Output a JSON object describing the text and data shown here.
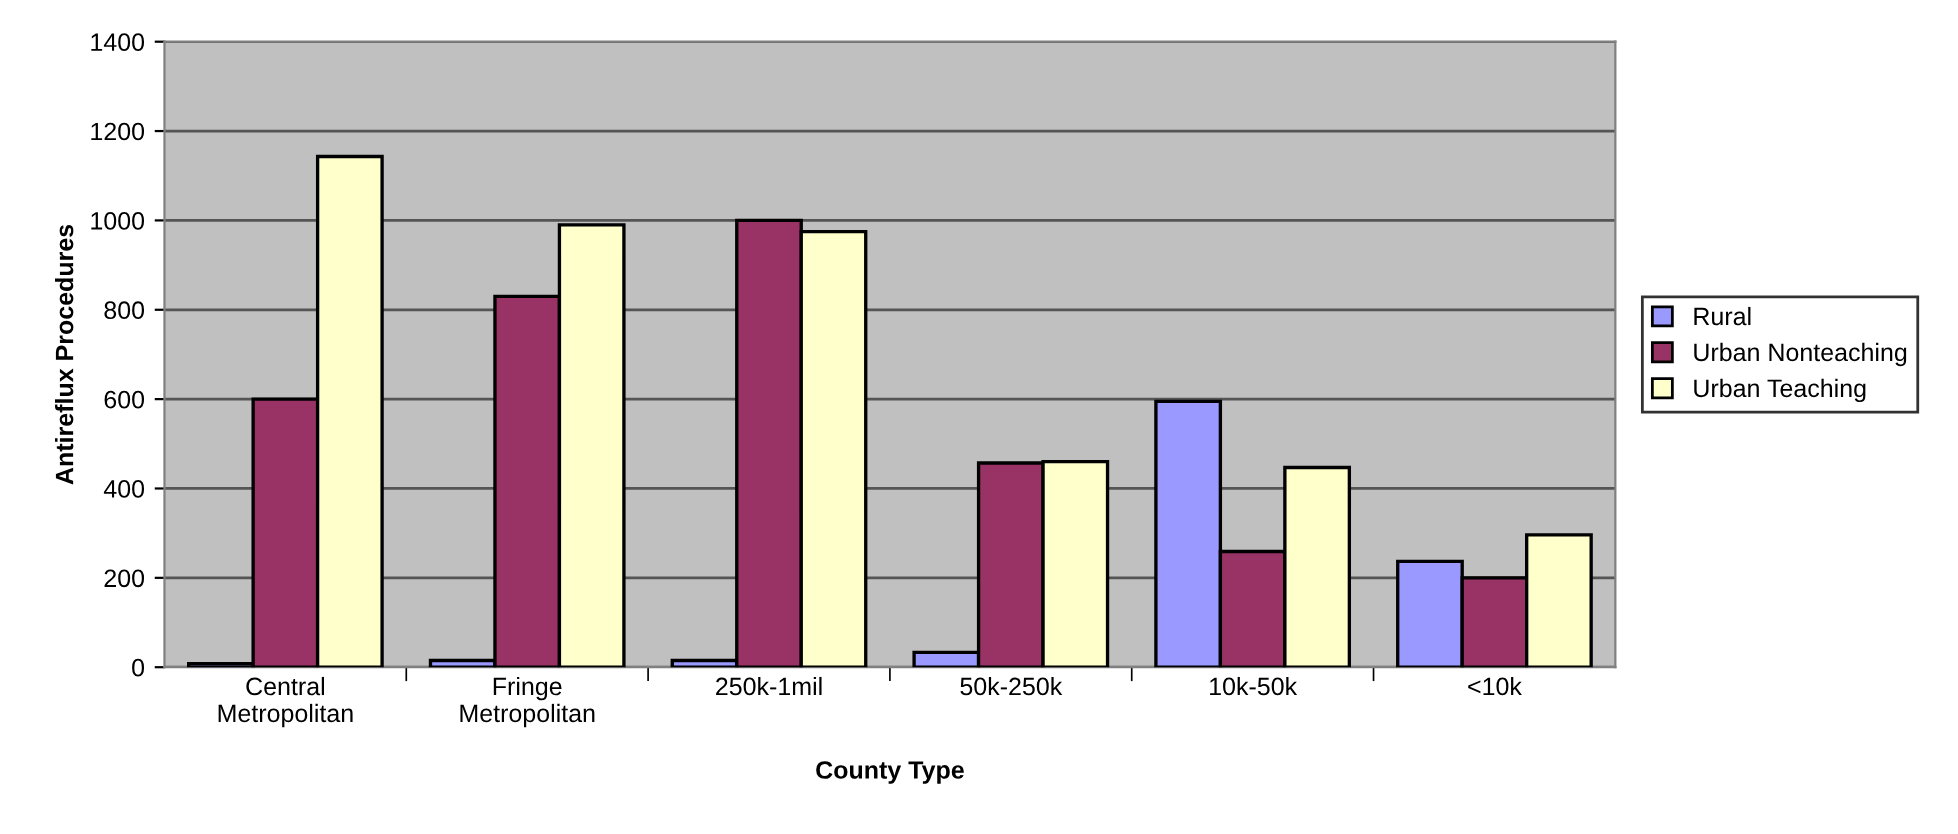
{
  "chart_data": {
    "type": "bar",
    "xlabel": "County Type",
    "ylabel": "Antireflux Procedures",
    "categories": [
      "Central\nMetropolitan",
      "Fringe\nMetropolitan",
      "250k-1mil",
      "50k-250k",
      "10k-50k",
      "<10k"
    ],
    "series": [
      {
        "name": "Rural",
        "color": "#9999ff",
        "values": [
          8,
          15,
          15,
          33,
          595,
          237
        ]
      },
      {
        "name": "Urban Nonteaching",
        "color": "#993366",
        "values": [
          600,
          830,
          1000,
          457,
          259,
          200
        ]
      },
      {
        "name": "Urban Teaching",
        "color": "#ffffcc",
        "values": [
          1143,
          990,
          975,
          460,
          447,
          296
        ]
      }
    ],
    "ylim": [
      0,
      1400
    ],
    "yticks": [
      0,
      200,
      400,
      600,
      800,
      1000,
      1200,
      1400
    ],
    "grid": "y",
    "legend": "right"
  }
}
